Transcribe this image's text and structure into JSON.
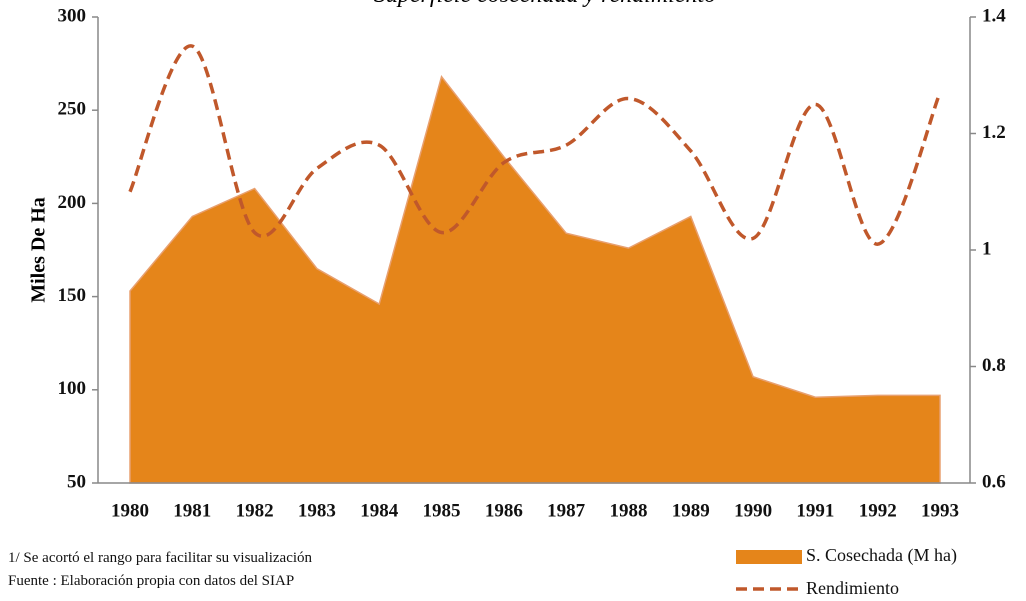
{
  "chart_data": {
    "type": "area-line",
    "title": "Superficie cosechada y rendimiento",
    "y_label": "Miles De Ha",
    "categories": [
      "1980",
      "1981",
      "1982",
      "1983",
      "1984",
      "1985",
      "1986",
      "1987",
      "1988",
      "1989",
      "1990",
      "1991",
      "1992",
      "1993"
    ],
    "series": [
      {
        "name": "S. Cosechada (M ha)",
        "color": "#e5851a",
        "axis": "y",
        "values": [
          153,
          193,
          208,
          165,
          146,
          268,
          225,
          184,
          176,
          193,
          107,
          96,
          97,
          97
        ]
      },
      {
        "name": "Rendimiento",
        "color": "#c0582b",
        "axis": "y2",
        "values": [
          1.1,
          1.35,
          1.03,
          1.14,
          1.18,
          1.03,
          1.15,
          1.18,
          1.26,
          1.17,
          1.02,
          1.25,
          1.01,
          1.27
        ]
      }
    ],
    "ylim": [
      50,
      300
    ],
    "yticks": [
      50,
      100,
      150,
      200,
      250,
      300
    ],
    "y2lim": [
      0.6,
      1.4
    ],
    "y2ticks": [
      0.6,
      0.8,
      1,
      1.2,
      1.4
    ],
    "notes": [
      "1/ Se acortó el rango para facilitar su visualización",
      "Fuente : Elaboración propia con datos del SIAP"
    ]
  }
}
